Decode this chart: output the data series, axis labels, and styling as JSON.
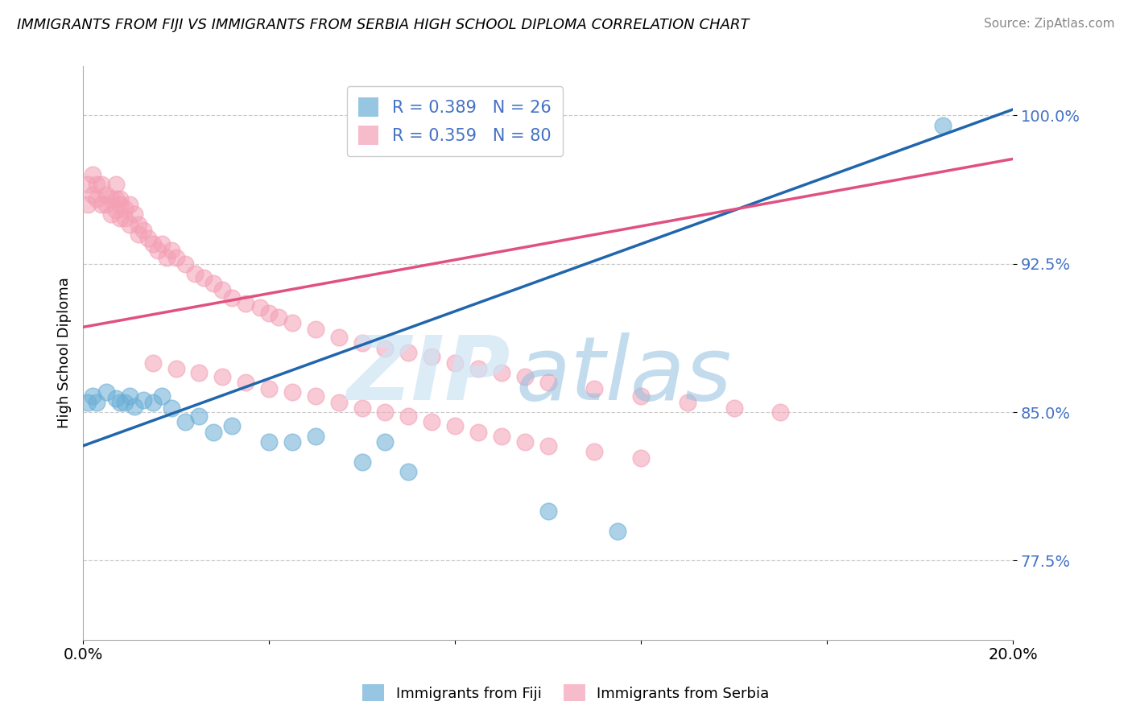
{
  "title": "IMMIGRANTS FROM FIJI VS IMMIGRANTS FROM SERBIA HIGH SCHOOL DIPLOMA CORRELATION CHART",
  "source": "Source: ZipAtlas.com",
  "ylabel": "High School Diploma",
  "xlim": [
    0.0,
    0.2
  ],
  "ylim": [
    0.735,
    1.025
  ],
  "yticks": [
    0.775,
    0.85,
    0.925,
    1.0
  ],
  "ytick_labels": [
    "77.5%",
    "85.0%",
    "92.5%",
    "100.0%"
  ],
  "fiji_color": "#6baed6",
  "serbia_color": "#f4a0b5",
  "fiji_line_color": "#2166ac",
  "serbia_line_color": "#e05080",
  "fiji_R": 0.389,
  "fiji_N": 26,
  "serbia_R": 0.359,
  "serbia_N": 80,
  "fiji_label": "Immigrants from Fiji",
  "serbia_label": "Immigrants from Serbia",
  "fiji_line_x0": 0.0,
  "fiji_line_y0": 0.833,
  "fiji_line_x1": 0.2,
  "fiji_line_y1": 1.003,
  "serbia_line_x0": 0.0,
  "serbia_line_y0": 0.893,
  "serbia_line_x1": 0.2,
  "serbia_line_y1": 0.978,
  "fiji_scatter_x": [
    0.001,
    0.002,
    0.003,
    0.005,
    0.007,
    0.008,
    0.009,
    0.01,
    0.011,
    0.013,
    0.015,
    0.017,
    0.019,
    0.022,
    0.025,
    0.028,
    0.032,
    0.04,
    0.045,
    0.05,
    0.06,
    0.065,
    0.07,
    0.1,
    0.115,
    0.185
  ],
  "fiji_scatter_y": [
    0.855,
    0.858,
    0.855,
    0.86,
    0.857,
    0.855,
    0.855,
    0.858,
    0.853,
    0.856,
    0.855,
    0.858,
    0.852,
    0.845,
    0.848,
    0.84,
    0.843,
    0.835,
    0.835,
    0.838,
    0.825,
    0.835,
    0.82,
    0.8,
    0.79,
    0.995
  ],
  "serbia_scatter_x": [
    0.001,
    0.001,
    0.002,
    0.002,
    0.003,
    0.003,
    0.004,
    0.004,
    0.005,
    0.005,
    0.006,
    0.006,
    0.007,
    0.007,
    0.007,
    0.008,
    0.008,
    0.008,
    0.009,
    0.009,
    0.01,
    0.01,
    0.011,
    0.012,
    0.012,
    0.013,
    0.014,
    0.015,
    0.016,
    0.017,
    0.018,
    0.019,
    0.02,
    0.022,
    0.024,
    0.026,
    0.028,
    0.03,
    0.032,
    0.035,
    0.038,
    0.04,
    0.042,
    0.045,
    0.05,
    0.055,
    0.06,
    0.065,
    0.07,
    0.075,
    0.08,
    0.085,
    0.09,
    0.095,
    0.1,
    0.11,
    0.12,
    0.13,
    0.14,
    0.15,
    0.015,
    0.02,
    0.025,
    0.03,
    0.035,
    0.04,
    0.045,
    0.05,
    0.055,
    0.06,
    0.065,
    0.07,
    0.075,
    0.08,
    0.085,
    0.09,
    0.095,
    0.1,
    0.11,
    0.12
  ],
  "serbia_scatter_y": [
    0.965,
    0.955,
    0.97,
    0.96,
    0.965,
    0.958,
    0.965,
    0.955,
    0.96,
    0.955,
    0.958,
    0.95,
    0.965,
    0.958,
    0.952,
    0.958,
    0.955,
    0.948,
    0.953,
    0.948,
    0.955,
    0.945,
    0.95,
    0.945,
    0.94,
    0.942,
    0.938,
    0.935,
    0.932,
    0.935,
    0.928,
    0.932,
    0.928,
    0.925,
    0.92,
    0.918,
    0.915,
    0.912,
    0.908,
    0.905,
    0.903,
    0.9,
    0.898,
    0.895,
    0.892,
    0.888,
    0.885,
    0.882,
    0.88,
    0.878,
    0.875,
    0.872,
    0.87,
    0.868,
    0.865,
    0.862,
    0.858,
    0.855,
    0.852,
    0.85,
    0.875,
    0.872,
    0.87,
    0.868,
    0.865,
    0.862,
    0.86,
    0.858,
    0.855,
    0.852,
    0.85,
    0.848,
    0.845,
    0.843,
    0.84,
    0.838,
    0.835,
    0.833,
    0.83,
    0.827
  ]
}
